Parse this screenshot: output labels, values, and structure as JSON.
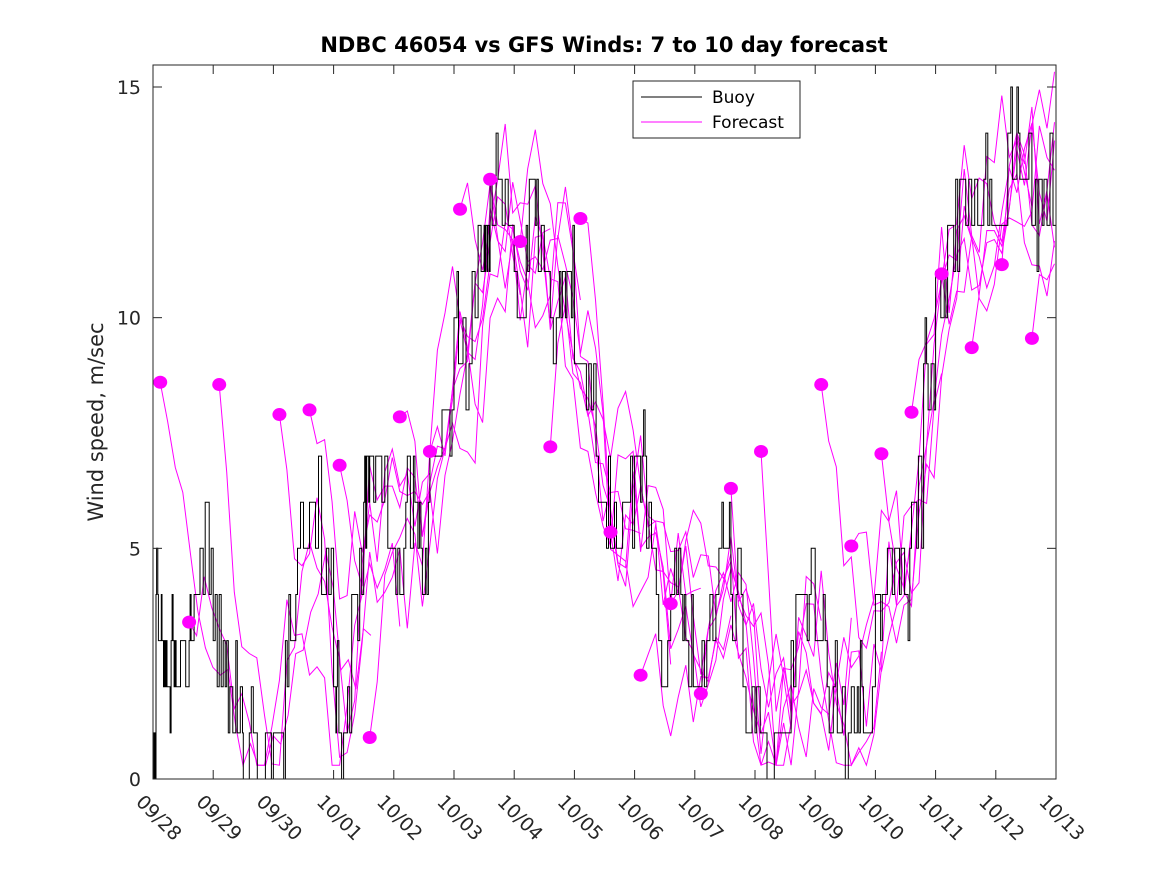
{
  "chart_data": {
    "type": "line",
    "title": "NDBC 46054 vs GFS Winds: 7 to 10 day forecast",
    "xlabel": "",
    "ylabel": "Wind speed, m/sec",
    "xlim": [
      0,
      15
    ],
    "ylim": [
      0,
      15.5
    ],
    "x_unit": "days since 09/28",
    "x_tick_labels": [
      "09/28",
      "09/29",
      "09/30",
      "10/01",
      "10/02",
      "10/03",
      "10/04",
      "10/05",
      "10/06",
      "10/07",
      "10/08",
      "10/09",
      "10/10",
      "10/11",
      "10/12",
      "10/13"
    ],
    "y_ticks": [
      0,
      5,
      10,
      15
    ],
    "y_tick_labels": [
      "0",
      "5",
      "10",
      "15"
    ],
    "grid": false,
    "legend": {
      "placement": "top-center-right",
      "entries": [
        {
          "name": "Buoy",
          "color": "#000000"
        },
        {
          "name": "Forecast",
          "color": "#ff00ff"
        }
      ]
    },
    "series": [
      {
        "name": "Buoy",
        "color": "#000000",
        "style": "step",
        "x": [
          0,
          0.05,
          0.1,
          0.2,
          0.3,
          0.4,
          0.6,
          0.7,
          0.8,
          1.0,
          1.2,
          1.4,
          1.5,
          1.6,
          1.8,
          2.0,
          2.2,
          2.4,
          2.6,
          2.8,
          3.0,
          3.1,
          3.3,
          3.5,
          3.6,
          3.8,
          4.0,
          4.2,
          4.4,
          4.6,
          4.8,
          5.0,
          5.1,
          5.3,
          5.5,
          5.6,
          5.8,
          6.0,
          6.2,
          6.4,
          6.6,
          6.8,
          7.0,
          7.2,
          7.4,
          7.6,
          7.8,
          8.0,
          8.2,
          8.4,
          8.6,
          8.8,
          9.0,
          9.2,
          9.4,
          9.6,
          9.8,
          10.0,
          10.2,
          10.4,
          10.6,
          10.8,
          11.0,
          11.2,
          11.4,
          11.6,
          11.8,
          12.0,
          12.2,
          12.4,
          12.6,
          12.8,
          13.0,
          13.2,
          13.4,
          13.6,
          13.8,
          14.0,
          14.2,
          14.4,
          14.6,
          14.8,
          15.0
        ],
        "y": [
          1,
          4,
          3,
          2,
          3,
          2,
          3,
          4,
          5,
          3,
          2,
          1,
          0,
          1,
          0,
          1,
          3,
          5,
          6,
          4,
          2,
          1,
          4,
          6,
          7,
          6,
          5,
          6,
          5,
          7,
          8,
          10,
          9,
          11,
          12,
          13,
          12,
          11,
          12,
          11,
          10,
          11,
          9,
          8,
          6,
          5,
          6,
          7,
          5,
          3,
          4,
          3,
          2,
          3,
          5,
          4,
          2,
          1,
          0,
          1,
          3,
          4,
          3,
          2,
          1,
          2,
          1,
          4,
          5,
          4,
          6,
          9,
          11,
          12,
          13,
          12,
          13,
          12,
          14,
          13,
          12,
          13,
          14
        ]
      }
    ],
    "forecast_start_points": [
      {
        "x": 0.12,
        "y": 8.6
      },
      {
        "x": 0.6,
        "y": 3.4
      },
      {
        "x": 1.1,
        "y": 8.55
      },
      {
        "x": 2.1,
        "y": 7.9
      },
      {
        "x": 2.6,
        "y": 8.0
      },
      {
        "x": 3.1,
        "y": 6.8
      },
      {
        "x": 3.6,
        "y": 0.9
      },
      {
        "x": 4.1,
        "y": 7.85
      },
      {
        "x": 4.6,
        "y": 7.1
      },
      {
        "x": 5.1,
        "y": 12.35
      },
      {
        "x": 5.6,
        "y": 13.0
      },
      {
        "x": 6.1,
        "y": 11.65
      },
      {
        "x": 6.6,
        "y": 7.2
      },
      {
        "x": 7.1,
        "y": 12.15
      },
      {
        "x": 7.6,
        "y": 5.35
      },
      {
        "x": 8.1,
        "y": 2.25
      },
      {
        "x": 8.6,
        "y": 3.8
      },
      {
        "x": 9.1,
        "y": 1.85
      },
      {
        "x": 9.6,
        "y": 6.3
      },
      {
        "x": 10.1,
        "y": 7.1
      },
      {
        "x": 11.1,
        "y": 8.55
      },
      {
        "x": 11.6,
        "y": 5.05
      },
      {
        "x": 12.1,
        "y": 7.05
      },
      {
        "x": 12.6,
        "y": 7.95
      },
      {
        "x": 13.1,
        "y": 10.95
      },
      {
        "x": 13.6,
        "y": 9.35
      },
      {
        "x": 14.1,
        "y": 11.15
      },
      {
        "x": 14.6,
        "y": 9.55
      }
    ],
    "forecast_color": "#ff00ff",
    "forecast_length_days": 3.5
  }
}
